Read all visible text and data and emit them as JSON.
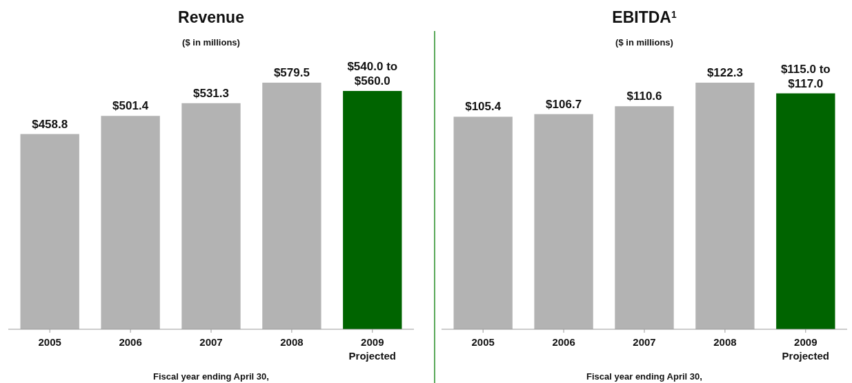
{
  "chart_data": [
    {
      "type": "bar",
      "title": "Revenue",
      "subtitle": "($ in millions)",
      "xlabel": "Fiscal year ending April 30,",
      "categories": [
        "2005",
        "2006",
        "2007",
        "2008",
        "2009\nProjected"
      ],
      "values": [
        458.8,
        501.4,
        531.3,
        579.5,
        560.0
      ],
      "colors": [
        "#b3b3b3",
        "#b3b3b3",
        "#b3b3b3",
        "#b3b3b3",
        "#006400"
      ],
      "value_labels": [
        "$458.8",
        "$501.4",
        "$531.3",
        "$579.5",
        "$540.0 to\n$560.0"
      ],
      "tick_labels": "x"
    },
    {
      "type": "bar",
      "title": "EBITDA$^{1}$",
      "subtitle": "($ in millions)",
      "xlabel": "Fiscal year ending April 30,",
      "categories": [
        "2005",
        "2006",
        "2007",
        "2008",
        "2009\nProjected"
      ],
      "values": [
        105.4,
        106.7,
        110.6,
        122.3,
        117.0
      ],
      "colors": [
        "#b3b3b3",
        "#b3b3b3",
        "#b3b3b3",
        "#b3b3b3",
        "#006400"
      ],
      "value_labels": [
        "$105.4",
        "$106.7",
        "$110.6",
        "$122.3",
        "$115.0 to\n$117.0"
      ],
      "tick_labels": "x"
    }
  ]
}
